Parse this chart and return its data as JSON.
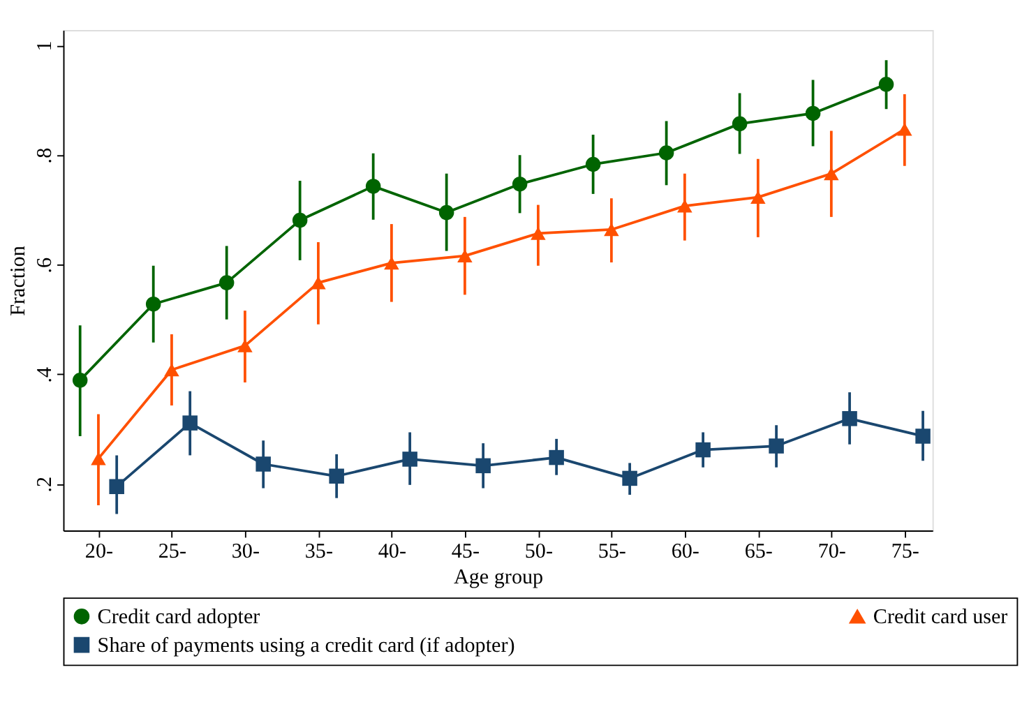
{
  "chart_data": {
    "type": "line",
    "xlabel": "Age group",
    "ylabel": "Fraction",
    "xlim": [
      17.6,
      76.9
    ],
    "ylim": [
      0.115,
      1.028
    ],
    "xticks": [
      {
        "value": 20,
        "label": "20-"
      },
      {
        "value": 25,
        "label": "25-"
      },
      {
        "value": 30,
        "label": "30-"
      },
      {
        "value": 35,
        "label": "35-"
      },
      {
        "value": 40,
        "label": "40-"
      },
      {
        "value": 45,
        "label": "45-"
      },
      {
        "value": 50,
        "label": "50-"
      },
      {
        "value": 55,
        "label": "55-"
      },
      {
        "value": 60,
        "label": "60-"
      },
      {
        "value": 65,
        "label": "65-"
      },
      {
        "value": 70,
        "label": "70-"
      },
      {
        "value": 75,
        "label": "75-"
      }
    ],
    "yticks": [
      {
        "value": 0.2,
        "label": ".2"
      },
      {
        "value": 0.4,
        "label": ".4"
      },
      {
        "value": 0.6,
        "label": ".6"
      },
      {
        "value": 0.8,
        "label": ".8"
      },
      {
        "value": 1,
        "label": "1"
      }
    ],
    "grid": false,
    "legend": "bottom",
    "line_style": "solid",
    "series": [
      {
        "name": "Credit card adopter",
        "color": "#006400",
        "marker": "circle",
        "x": [
          18.75,
          23.75,
          28.75,
          33.75,
          38.75,
          43.75,
          48.75,
          53.75,
          58.75,
          63.75,
          68.75,
          73.75
        ],
        "values": [
          0.389,
          0.528,
          0.567,
          0.681,
          0.743,
          0.695,
          0.747,
          0.783,
          0.804,
          0.857,
          0.876,
          0.929
        ],
        "errors": [
          [
            0.287,
            0.489
          ],
          [
            0.458,
            0.598
          ],
          [
            0.5,
            0.634
          ],
          [
            0.608,
            0.753
          ],
          [
            0.682,
            0.803
          ],
          [
            0.625,
            0.766
          ],
          [
            0.694,
            0.8
          ],
          [
            0.729,
            0.837
          ],
          [
            0.745,
            0.862
          ],
          [
            0.802,
            0.913
          ],
          [
            0.816,
            0.937
          ],
          [
            0.884,
            0.973
          ]
        ]
      },
      {
        "name": "Credit card user",
        "color": "#ff5000",
        "marker": "triangle",
        "x": [
          20,
          25,
          30,
          35,
          40,
          45,
          50,
          55,
          60,
          65,
          70,
          75
        ],
        "values": [
          0.246,
          0.408,
          0.452,
          0.567,
          0.603,
          0.616,
          0.657,
          0.664,
          0.707,
          0.723,
          0.766,
          0.847
        ],
        "errors": [
          [
            0.161,
            0.327
          ],
          [
            0.343,
            0.473
          ],
          [
            0.385,
            0.516
          ],
          [
            0.491,
            0.641
          ],
          [
            0.532,
            0.674
          ],
          [
            0.545,
            0.687
          ],
          [
            0.598,
            0.709
          ],
          [
            0.604,
            0.721
          ],
          [
            0.644,
            0.766
          ],
          [
            0.65,
            0.793
          ],
          [
            0.687,
            0.844
          ],
          [
            0.78,
            0.911
          ]
        ]
      },
      {
        "name": "Share of payments using a credit card (if adopter)",
        "color": "#1a476f",
        "marker": "square",
        "x": [
          21.25,
          26.25,
          31.25,
          36.25,
          41.25,
          46.25,
          51.25,
          56.25,
          61.25,
          66.25,
          71.25,
          76.25
        ],
        "values": [
          0.195,
          0.311,
          0.236,
          0.214,
          0.245,
          0.233,
          0.248,
          0.21,
          0.262,
          0.269,
          0.319,
          0.287
        ],
        "errors": [
          [
            0.145,
            0.252
          ],
          [
            0.252,
            0.369
          ],
          [
            0.192,
            0.279
          ],
          [
            0.174,
            0.254
          ],
          [
            0.198,
            0.294
          ],
          [
            0.192,
            0.274
          ],
          [
            0.216,
            0.282
          ],
          [
            0.18,
            0.238
          ],
          [
            0.23,
            0.294
          ],
          [
            0.23,
            0.307
          ],
          [
            0.272,
            0.367
          ],
          [
            0.242,
            0.333
          ]
        ]
      }
    ]
  }
}
